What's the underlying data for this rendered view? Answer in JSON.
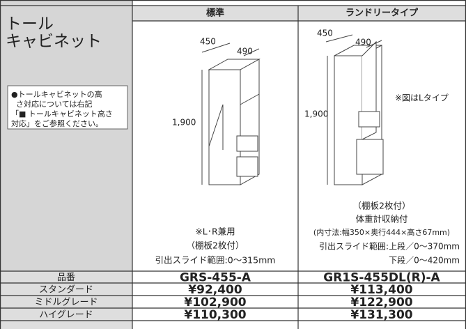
{
  "header": {
    "columns": [
      "標準",
      "ランドリータイプ"
    ]
  },
  "product": {
    "name_lines": [
      "トール",
      "キャビネット"
    ],
    "note_lines": [
      "●トールキャビネットの高",
      "さ対応については右記",
      "「■ トールキャビネット高さ",
      "対応」をご参照ください。"
    ]
  },
  "standard": {
    "dims": {
      "width": "450",
      "depth": "490",
      "height": "1,900"
    },
    "notes": [
      "※L･R兼用",
      "（棚板2枚付）",
      "引出スライド範囲:0～315mm"
    ]
  },
  "laundry": {
    "dims": {
      "width": "450",
      "depth": "490",
      "height": "1,900"
    },
    "figure_note": "※図はLタイプ",
    "notes": [
      "（棚板2枚付）",
      "体重計収納付",
      "(内寸法:幅350×奥行444×高さ67mm)",
      "引出スライド範囲:上段／0～370mm",
      "下段／0～420mm"
    ]
  },
  "table": {
    "rows": [
      [
        "品番",
        "GRS-455-A",
        "GR1S-455DL(R)-A"
      ],
      [
        "スタンダード",
        "¥92,400",
        "¥113,400"
      ],
      [
        "ミドルグレード",
        "¥102,900",
        "¥122,900"
      ],
      [
        "ハイグレード",
        "¥110,300",
        "¥131,300"
      ]
    ]
  }
}
